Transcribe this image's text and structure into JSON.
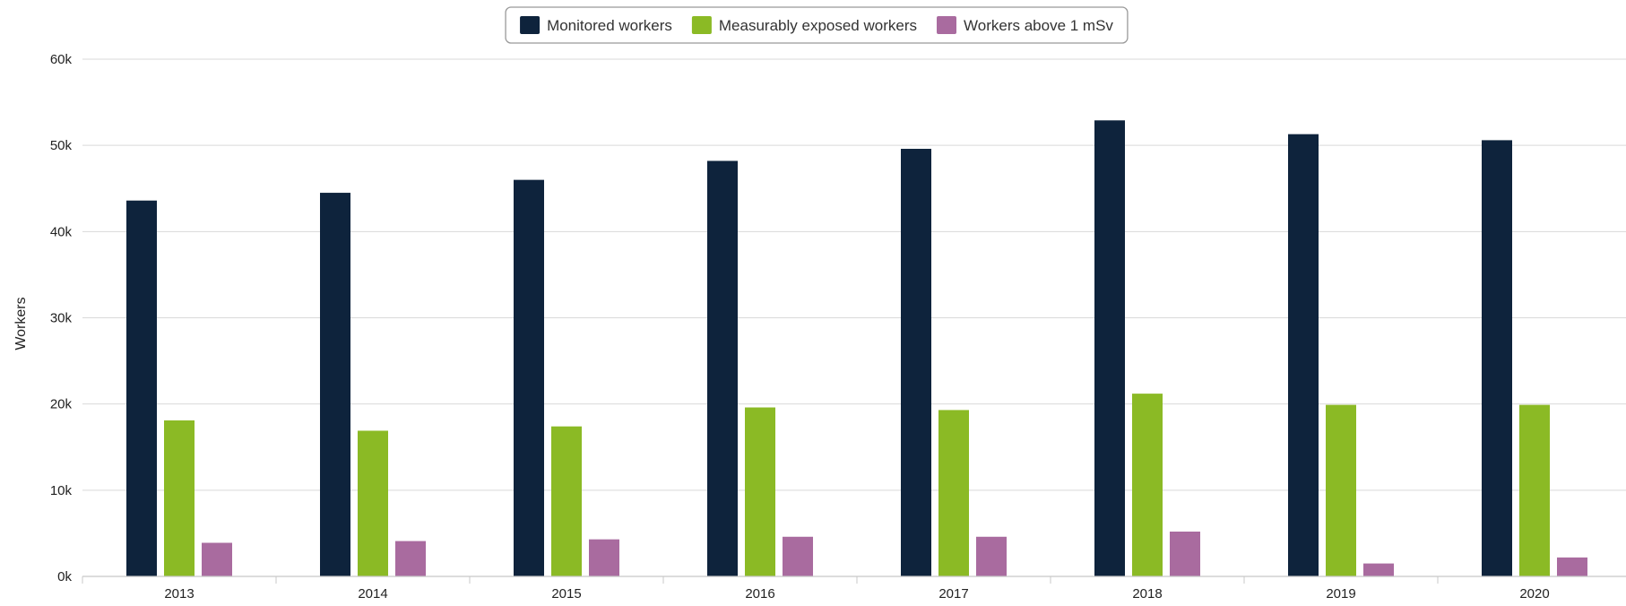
{
  "chart_data": {
    "type": "bar",
    "title": "",
    "xlabel": "",
    "ylabel": "Workers",
    "ylim": [
      0,
      60000
    ],
    "yticks": [
      0,
      10000,
      20000,
      30000,
      40000,
      50000,
      60000
    ],
    "ytick_labels": [
      "0k",
      "10k",
      "20k",
      "30k",
      "40k",
      "50k",
      "60k"
    ],
    "categories": [
      "2013",
      "2014",
      "2015",
      "2016",
      "2017",
      "2018",
      "2019",
      "2020"
    ],
    "grid": true,
    "legend_position": "top-center",
    "series": [
      {
        "name": "Monitored workers",
        "color": "#0e233c",
        "values": [
          43600,
          44500,
          46000,
          48200,
          49600,
          52900,
          51300,
          50600
        ]
      },
      {
        "name": "Measurably exposed workers",
        "color": "#8bba25",
        "values": [
          18100,
          16900,
          17400,
          19600,
          19300,
          21200,
          19900,
          19900
        ]
      },
      {
        "name": "Workers above 1 mSv",
        "color": "#a96b9f",
        "values": [
          3900,
          4100,
          4300,
          4600,
          4600,
          5200,
          1500,
          2200
        ]
      }
    ]
  }
}
